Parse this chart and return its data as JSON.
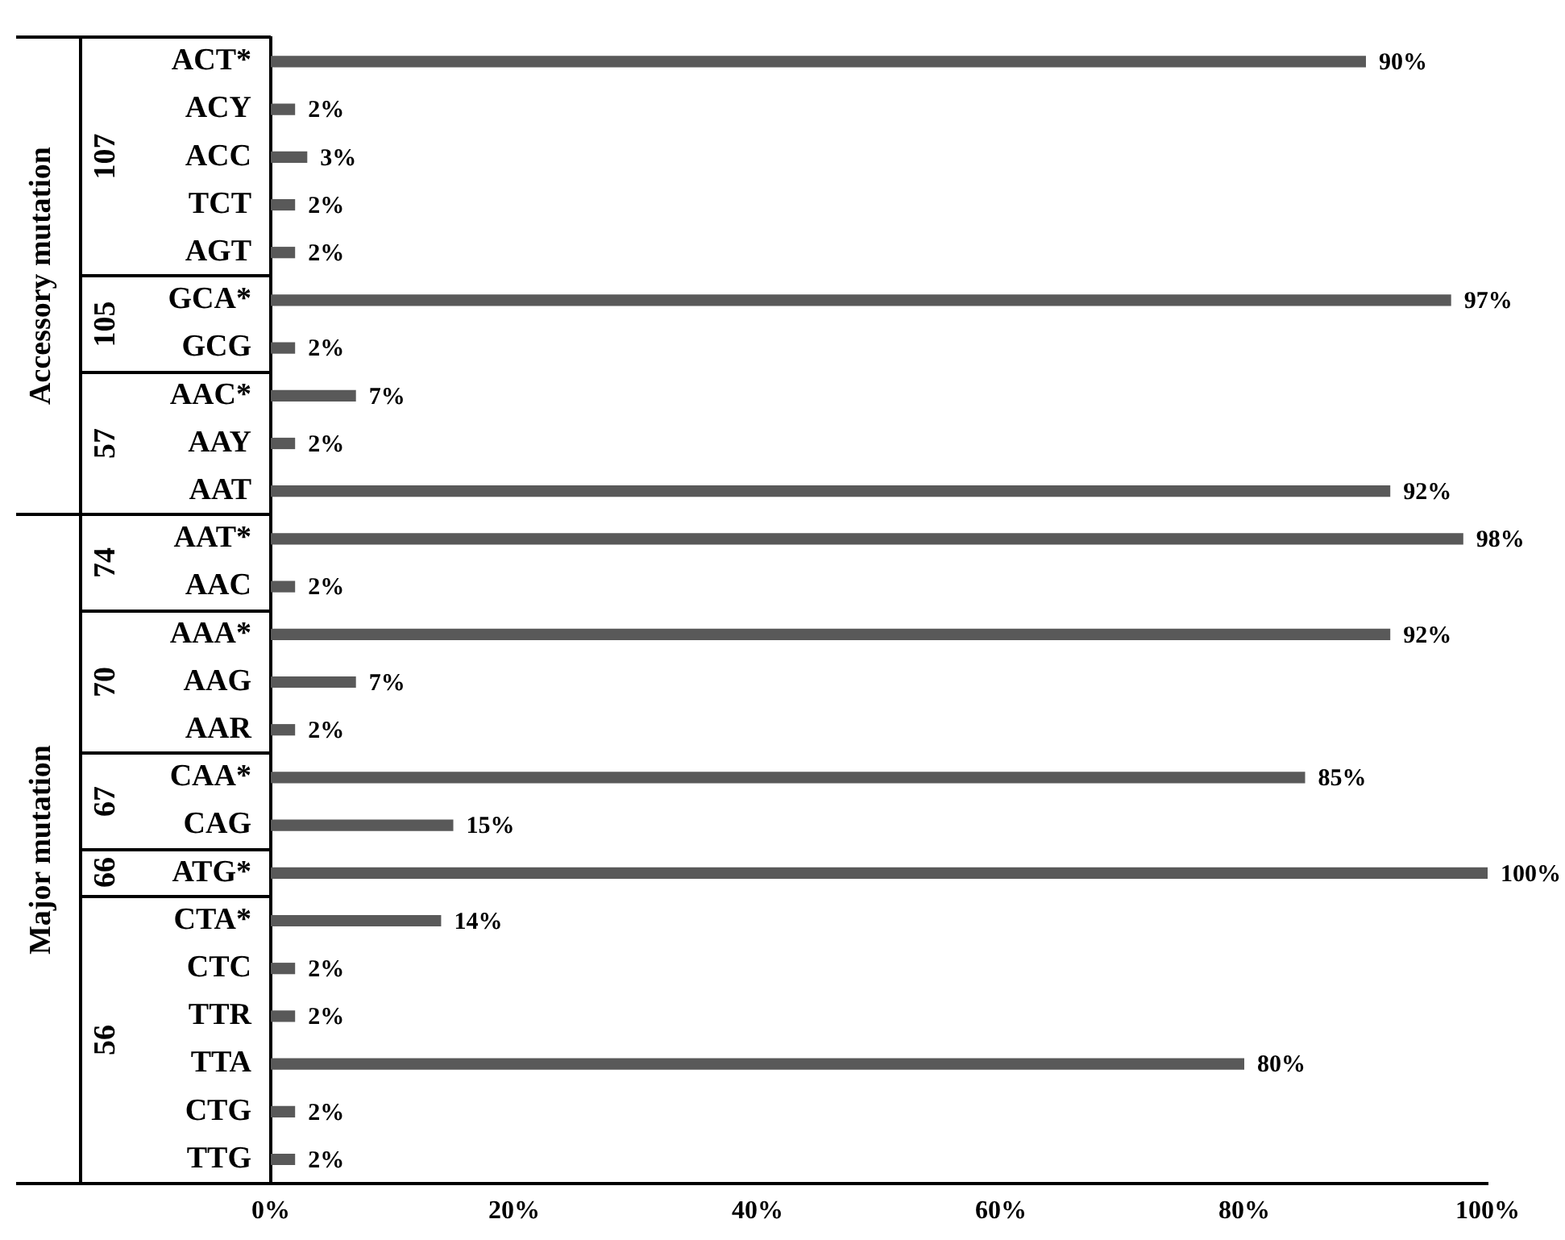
{
  "chart_data": {
    "type": "bar",
    "orientation": "horizontal",
    "categories": [
      "ACT*",
      "ACY",
      "ACC",
      "TCT",
      "AGT",
      "GCA*",
      "GCG",
      "AAC*",
      "AAY",
      "AAT",
      "AAT*",
      "AAC",
      "AAA*",
      "AAG",
      "AAR",
      "CAA*",
      "CAG",
      "ATG*",
      "CTA*",
      "CTC",
      "TTR",
      "TTA",
      "CTG",
      "TTG"
    ],
    "values": [
      90,
      2,
      3,
      2,
      2,
      97,
      2,
      7,
      2,
      92,
      98,
      2,
      92,
      7,
      2,
      85,
      15,
      100,
      14,
      2,
      2,
      80,
      2,
      2
    ],
    "value_labels": [
      "90%",
      "2%",
      "3%",
      "2%",
      "2%",
      "97%",
      "2%",
      "7%",
      "2%",
      "92%",
      "98%",
      "2%",
      "92%",
      "7%",
      "2%",
      "85%",
      "15%",
      "100%",
      "14%",
      "2%",
      "2%",
      "80%",
      "2%",
      "2%"
    ],
    "color": "#595959",
    "xlim": [
      0,
      100
    ],
    "xticks": [
      {
        "value": 0,
        "label": "0%"
      },
      {
        "value": 20,
        "label": "20%"
      },
      {
        "value": 40,
        "label": "40%"
      },
      {
        "value": 60,
        "label": "60%"
      },
      {
        "value": 80,
        "label": "80%"
      },
      {
        "value": 100,
        "label": "100%"
      }
    ],
    "annotations": [
      "107",
      "105",
      "57",
      "74",
      "70",
      "67",
      "66",
      "56",
      "Accessory mutation",
      "Major mutation"
    ]
  }
}
